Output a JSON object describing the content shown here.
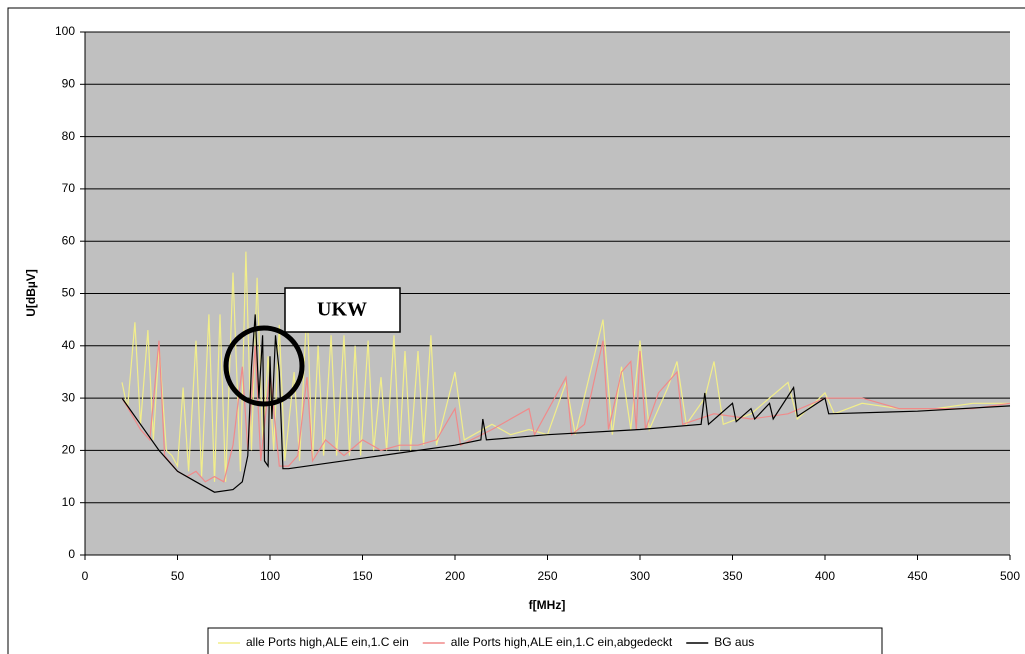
{
  "chart_data": {
    "type": "line",
    "x_label": "f[MHz]",
    "y_label": "U[dBµV]",
    "annotation": "UKW",
    "xlim": [
      0,
      500
    ],
    "xticks": [
      0,
      50,
      100,
      150,
      200,
      250,
      300,
      350,
      400,
      450,
      500
    ],
    "ylim": [
      0,
      100
    ],
    "yticks": [
      0,
      10,
      20,
      30,
      40,
      50,
      60,
      70,
      80,
      90,
      100
    ],
    "grid": true,
    "legend": "bottom",
    "series": [
      {
        "name": "alle Ports high,ALE ein,1.C ein",
        "color": "#f2ee8a",
        "x": [
          20,
          23,
          27,
          30,
          34,
          37,
          40,
          44,
          47,
          50,
          53,
          56,
          60,
          63,
          67,
          70,
          73,
          76,
          80,
          84,
          87,
          90,
          93,
          96,
          99,
          102,
          105,
          108,
          113,
          116,
          120,
          123,
          126,
          129,
          133,
          136,
          140,
          143,
          146,
          149,
          153,
          156,
          160,
          163,
          167,
          170,
          173,
          176,
          180,
          183,
          187,
          190,
          200,
          205,
          220,
          230,
          240,
          250,
          260,
          265,
          280,
          285,
          290,
          295,
          300,
          305,
          315,
          320,
          325,
          335,
          340,
          345,
          360,
          380,
          385,
          400,
          405,
          420,
          440,
          460,
          480,
          500
        ],
        "values": [
          33,
          28,
          44.5,
          25,
          43,
          22,
          40,
          20,
          19,
          17,
          32,
          16,
          41,
          15,
          46,
          14,
          46,
          14,
          54,
          16,
          58,
          20,
          53,
          22,
          38,
          20,
          44,
          18,
          35,
          18,
          48,
          18,
          40,
          19,
          42,
          19,
          42,
          19,
          40,
          19,
          41,
          20,
          34,
          20,
          42,
          20,
          39,
          20,
          39,
          21,
          42,
          21,
          35,
          22,
          25,
          23,
          24,
          23,
          33,
          23,
          45,
          23,
          36,
          24,
          41,
          24,
          32,
          37,
          25,
          30,
          37,
          25,
          27,
          33,
          26,
          31,
          27,
          29,
          28,
          28,
          29,
          29
        ]
      },
      {
        "name": "alle Ports high,ALE ein,1.C ein,abgedeckt",
        "color": "#f08a8a",
        "x": [
          20,
          25,
          30,
          35,
          40,
          43,
          50,
          55,
          60,
          65,
          70,
          75,
          80,
          85,
          88,
          92,
          95,
          100,
          105,
          110,
          115,
          120,
          123,
          130,
          140,
          150,
          160,
          170,
          180,
          190,
          200,
          203,
          220,
          240,
          243,
          260,
          263,
          270,
          280,
          283,
          290,
          295,
          298,
          300,
          303,
          310,
          320,
          323,
          340,
          360,
          380,
          400,
          420,
          440,
          460,
          480,
          500
        ],
        "values": [
          30,
          27,
          24,
          22,
          41,
          19,
          16,
          15,
          16,
          14,
          15,
          14,
          21,
          36,
          20,
          40,
          18,
          35,
          17,
          17,
          19,
          34,
          18,
          22,
          19,
          22,
          20,
          21,
          21,
          22,
          28,
          21,
          24,
          28,
          23,
          34,
          23,
          25,
          41,
          24,
          35,
          37,
          24,
          39,
          24,
          31,
          35,
          25,
          27,
          26,
          27,
          30,
          30,
          28,
          28,
          28,
          29
        ]
      },
      {
        "name": "BG aus",
        "color": "#000000",
        "x": [
          20,
          30,
          40,
          50,
          60,
          70,
          80,
          85,
          88,
          90,
          92,
          94,
          96,
          97,
          99,
          100,
          101,
          103,
          105,
          107,
          110,
          150,
          200,
          214,
          215,
          217,
          250,
          300,
          333,
          335,
          337,
          350,
          352,
          360,
          362,
          370,
          372,
          383,
          385,
          400,
          402,
          450,
          500
        ],
        "values": [
          30,
          25,
          20,
          16,
          14,
          12,
          12.5,
          14,
          19,
          36,
          46,
          30,
          42,
          18,
          17,
          38,
          26,
          42,
          35,
          16.5,
          16.5,
          18.5,
          21,
          22,
          26,
          22,
          23,
          24,
          25,
          31,
          25,
          29,
          25.5,
          28,
          26,
          29,
          26,
          32,
          26.5,
          30,
          27,
          27.5,
          28.5
        ]
      }
    ]
  }
}
